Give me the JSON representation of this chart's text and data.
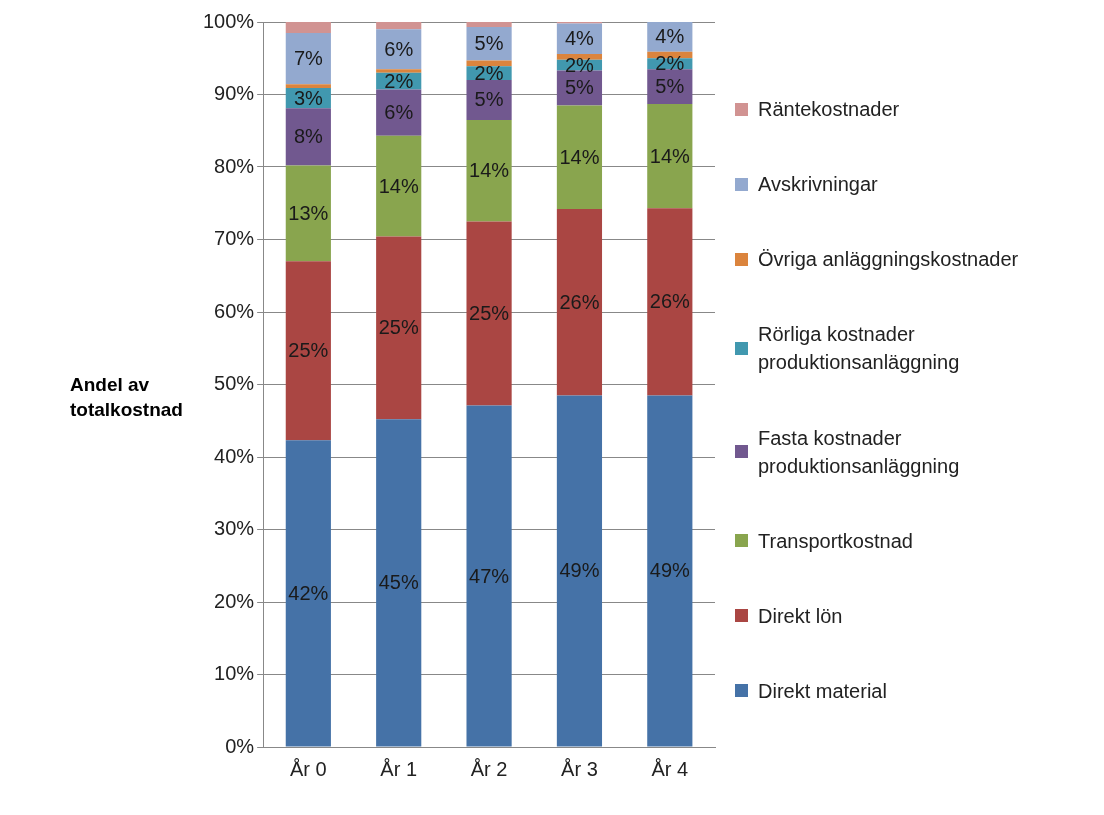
{
  "chart_data": {
    "type": "bar",
    "stacked": true,
    "ylabel": "Andel av totalkostnad",
    "categories": [
      "År 0",
      "År 1",
      "År 2",
      "År 3",
      "År 4"
    ],
    "series": [
      {
        "name": "Direkt material",
        "color": "#4572a7",
        "values": [
          42.3,
          45.2,
          47.1,
          48.5,
          48.5
        ],
        "value_labels": [
          "42%",
          "45%",
          "47%",
          "49%",
          "49%"
        ]
      },
      {
        "name": "Direkt lön",
        "color": "#aa4643",
        "values": [
          24.7,
          25.2,
          25.4,
          25.7,
          25.8
        ],
        "value_labels": [
          "25%",
          "25%",
          "25%",
          "26%",
          "26%"
        ]
      },
      {
        "name": "Transportkostnad",
        "color": "#89a54e",
        "values": [
          13.2,
          13.9,
          14.0,
          14.3,
          14.4
        ],
        "value_labels": [
          "13%",
          "14%",
          "14%",
          "14%",
          "14%"
        ]
      },
      {
        "name": "Fasta kostnader produktionsanläggning",
        "color": "#71588f",
        "values": [
          7.9,
          6.4,
          5.5,
          4.8,
          4.8
        ],
        "value_labels": [
          "8%",
          "6%",
          "5%",
          "5%",
          "5%"
        ]
      },
      {
        "name": "Rörliga kostnader produktionsanläggning",
        "color": "#4198af",
        "values": [
          2.8,
          2.3,
          1.9,
          1.5,
          1.5
        ],
        "value_labels": [
          "3%",
          "2%",
          "2%",
          "2%",
          "2%"
        ]
      },
      {
        "name": "Övriga anläggningskostnader",
        "color": "#db843d",
        "values": [
          0.5,
          0.5,
          0.8,
          0.8,
          0.9
        ],
        "value_labels": [
          null,
          null,
          null,
          null,
          null
        ]
      },
      {
        "name": "Avskrivningar",
        "color": "#93a9cf",
        "values": [
          7.1,
          5.5,
          4.6,
          4.2,
          4.1
        ],
        "value_labels": [
          "7%",
          "6%",
          "5%",
          "4%",
          "4%"
        ]
      },
      {
        "name": "Räntekostnader",
        "color": "#d19392",
        "values": [
          1.5,
          1.0,
          0.7,
          0.2,
          0
        ],
        "value_labels": [
          null,
          null,
          null,
          null,
          null
        ]
      }
    ],
    "ylim": [
      0,
      100
    ],
    "yticks": [
      {
        "value": 0,
        "label": "0%"
      },
      {
        "value": 10,
        "label": "10%"
      },
      {
        "value": 20,
        "label": "20%"
      },
      {
        "value": 30,
        "label": "30%"
      },
      {
        "value": 40,
        "label": "40%"
      },
      {
        "value": 50,
        "label": "50%"
      },
      {
        "value": 60,
        "label": "60%"
      },
      {
        "value": 70,
        "label": "70%"
      },
      {
        "value": 80,
        "label": "80%"
      },
      {
        "value": 90,
        "label": "90%"
      },
      {
        "value": 100,
        "label": "100%"
      }
    ],
    "grid": "y",
    "legend": "right"
  }
}
